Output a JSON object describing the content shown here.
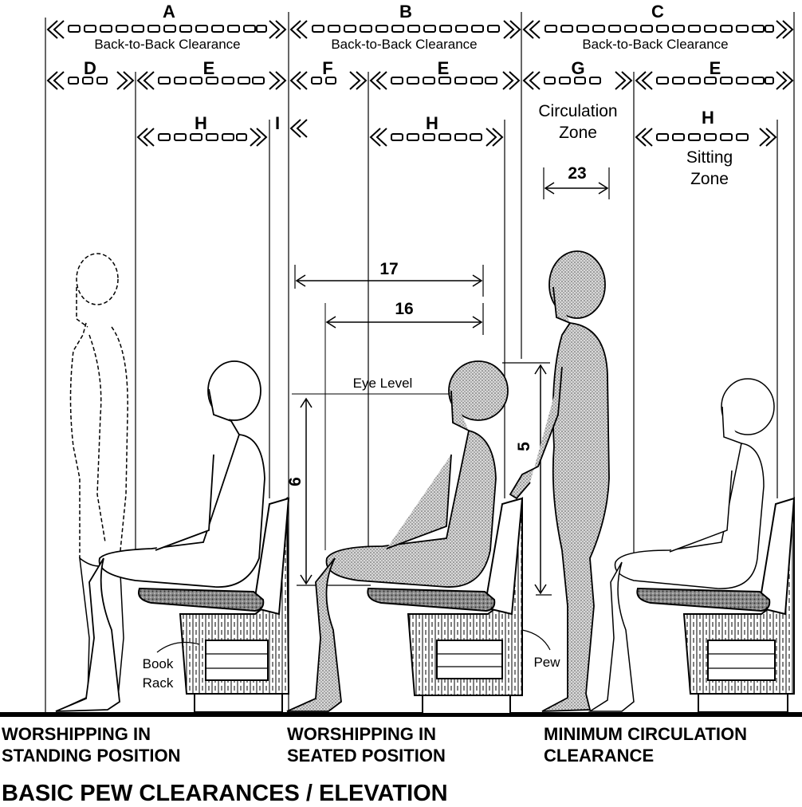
{
  "dimensions": {
    "A": {
      "letter": "A",
      "label": "Back-to-Back Clearance"
    },
    "B": {
      "letter": "B",
      "label": "Back-to-Back Clearance"
    },
    "C": {
      "letter": "C",
      "label": "Back-to-Back Clearance"
    },
    "D": "D",
    "E": "E",
    "F": "F",
    "G": "G",
    "H": "H",
    "I": "I"
  },
  "zones": {
    "circulation_line1": "Circulation",
    "circulation_line2": "Zone",
    "sitting_line1": "Sitting",
    "sitting_line2": "Zone"
  },
  "measurements": {
    "m23": "23",
    "m17": "17",
    "m16": "16",
    "m6": "6",
    "m5": "5"
  },
  "annotations": {
    "eye_level": "Eye Level",
    "book": "Book",
    "rack": "Rack",
    "pew": "Pew"
  },
  "captions": {
    "standing_line1": "WORSHIPPING IN",
    "standing_line2": "STANDING POSITION",
    "seated_line1": "WORSHIPPING IN",
    "seated_line2": "SEATED POSITION",
    "circulation_line1": "MINIMUM CIRCULATION",
    "circulation_line2": "CLEARANCE"
  },
  "title": "BASIC PEW CLEARANCES / ELEVATION",
  "colors": {
    "ink": "#000000",
    "figure_fill": "#9a9a9a",
    "paper": "#ffffff"
  }
}
